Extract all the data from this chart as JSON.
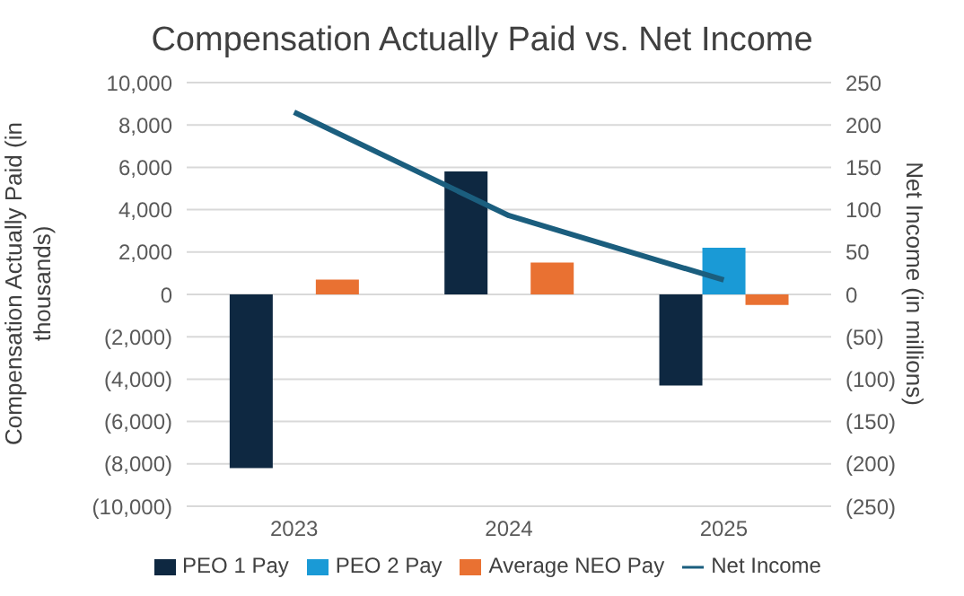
{
  "chart_data": {
    "type": "bar",
    "title": "Compensation Actually Paid vs. Net Income",
    "ylabel": "Compensation Actually Paid (in thousands)",
    "y2label": "Net Income  (in millions)",
    "categories": [
      "2023",
      "2024",
      "2025"
    ],
    "series": [
      {
        "name": "PEO 1 Pay",
        "color": "#0e2841",
        "values": [
          -8200,
          5800,
          -4300
        ]
      },
      {
        "name": "PEO 2 Pay",
        "color": "#1a9ad6",
        "values": [
          null,
          null,
          2200
        ]
      },
      {
        "name": "Average NEO Pay",
        "color": "#e97132",
        "values": [
          700,
          1500,
          -500
        ]
      },
      {
        "name": "Net Income",
        "type": "line",
        "axis": "y2",
        "color": "#1b5e7e",
        "values": [
          215,
          93,
          17
        ]
      }
    ],
    "ylim": [
      -10000,
      10000
    ],
    "yticks": [
      {
        "value": -10000,
        "label": "(10,000)"
      },
      {
        "value": -8000,
        "label": "(8,000)"
      },
      {
        "value": -6000,
        "label": "(6,000)"
      },
      {
        "value": -4000,
        "label": "(4,000)"
      },
      {
        "value": -2000,
        "label": "(2,000)"
      },
      0,
      {
        "value": 2000,
        "label": "2,000"
      },
      {
        "value": 4000,
        "label": "4,000"
      },
      {
        "value": 6000,
        "label": "6,000"
      },
      {
        "value": 8000,
        "label": "8,000"
      },
      {
        "value": 10000,
        "label": "10,000"
      }
    ],
    "y2lim": [
      -250,
      250
    ],
    "y2ticks": [
      {
        "value": -250,
        "label": "(250)"
      },
      {
        "value": -200,
        "label": "(200)"
      },
      {
        "value": -150,
        "label": "(150)"
      },
      {
        "value": -100,
        "label": "(100)"
      },
      {
        "value": -50,
        "label": "(50)"
      },
      0,
      50,
      100,
      150,
      200,
      250
    ],
    "grid": "y",
    "legend": "bottom",
    "marker": "none"
  }
}
